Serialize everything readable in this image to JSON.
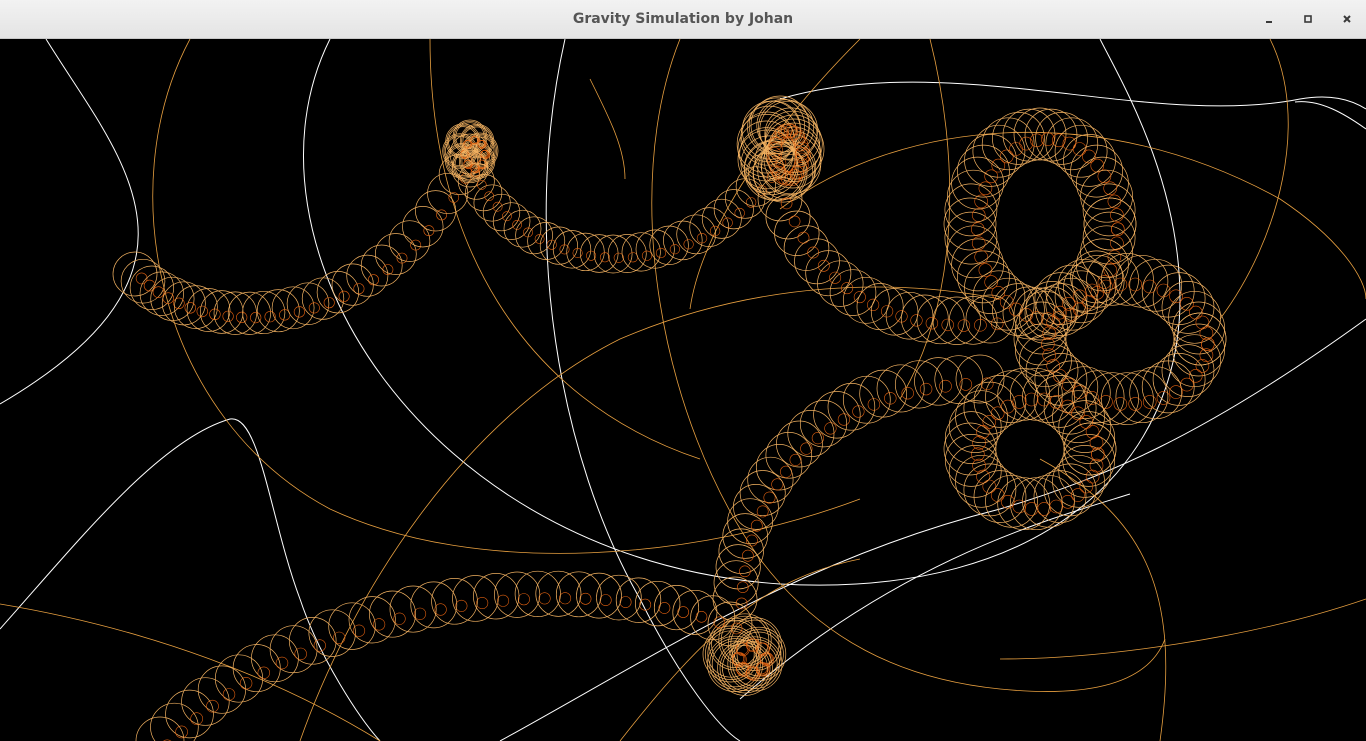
{
  "window": {
    "title": "Gravity Simulation by Johan",
    "controls": {
      "minimize": "minimize-icon",
      "maximize": "maximize-icon",
      "close": "close-icon"
    }
  },
  "colors": {
    "background": "#000000",
    "orbit_white": "#ffffff",
    "orbit_orange": "#e8a040",
    "loop_orange": "#f0b060",
    "core_orange": "#e06010"
  }
}
